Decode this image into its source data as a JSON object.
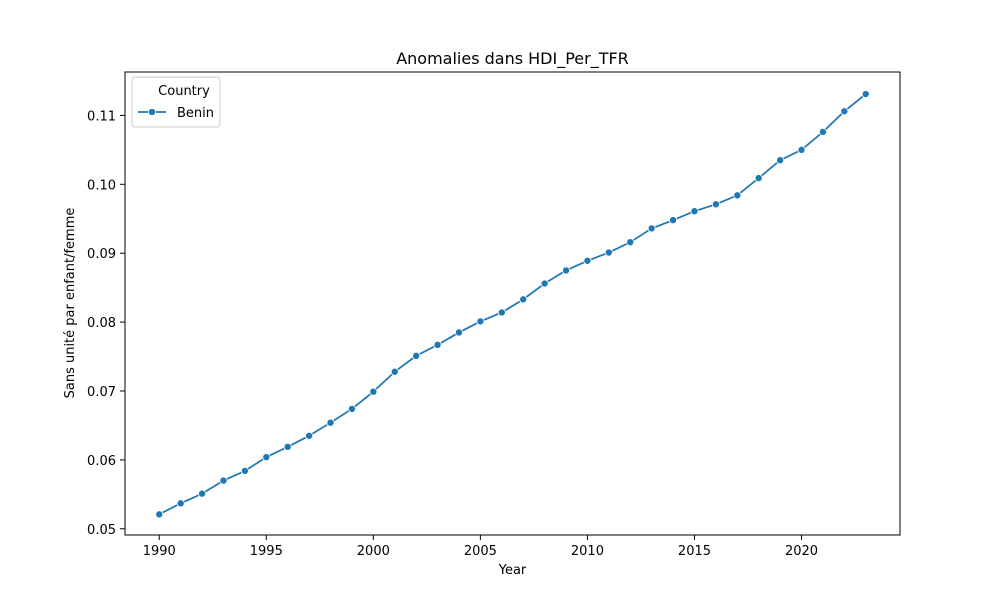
{
  "chart_data": {
    "type": "line",
    "title": "Anomalies dans HDI_Per_TFR",
    "xlabel": "Year",
    "ylabel": "Sans unité par enfant/femme",
    "xlim": [
      1988.4,
      2024.6
    ],
    "ylim": [
      0.0491,
      0.1163
    ],
    "xticks": [
      1990,
      1995,
      2000,
      2005,
      2010,
      2015,
      2020
    ],
    "yticks": [
      0.05,
      0.06,
      0.07,
      0.08,
      0.09,
      0.1,
      0.11
    ],
    "ytick_labels": [
      "0.05",
      "0.06",
      "0.07",
      "0.08",
      "0.09",
      "0.10",
      "0.11"
    ],
    "grid": false,
    "legend": {
      "title": "Country",
      "position": "top-left"
    },
    "x": [
      1990,
      1991,
      1992,
      1993,
      1994,
      1995,
      1996,
      1997,
      1998,
      1999,
      2000,
      2001,
      2002,
      2003,
      2004,
      2005,
      2006,
      2007,
      2008,
      2009,
      2010,
      2011,
      2012,
      2013,
      2014,
      2015,
      2016,
      2017,
      2018,
      2019,
      2020,
      2021,
      2022,
      2023
    ],
    "series": [
      {
        "name": "Benin",
        "color": "#1f77b4",
        "marker": "circle",
        "values": [
          0.0521,
          0.0537,
          0.0551,
          0.057,
          0.0584,
          0.0604,
          0.0619,
          0.0635,
          0.0654,
          0.0674,
          0.0699,
          0.0728,
          0.0751,
          0.0767,
          0.0785,
          0.0801,
          0.0814,
          0.0833,
          0.0856,
          0.0875,
          0.0889,
          0.0901,
          0.0916,
          0.0936,
          0.0948,
          0.0961,
          0.0971,
          0.0984,
          0.1009,
          0.1035,
          0.105,
          0.1076,
          0.1106,
          0.1131
        ]
      }
    ]
  }
}
